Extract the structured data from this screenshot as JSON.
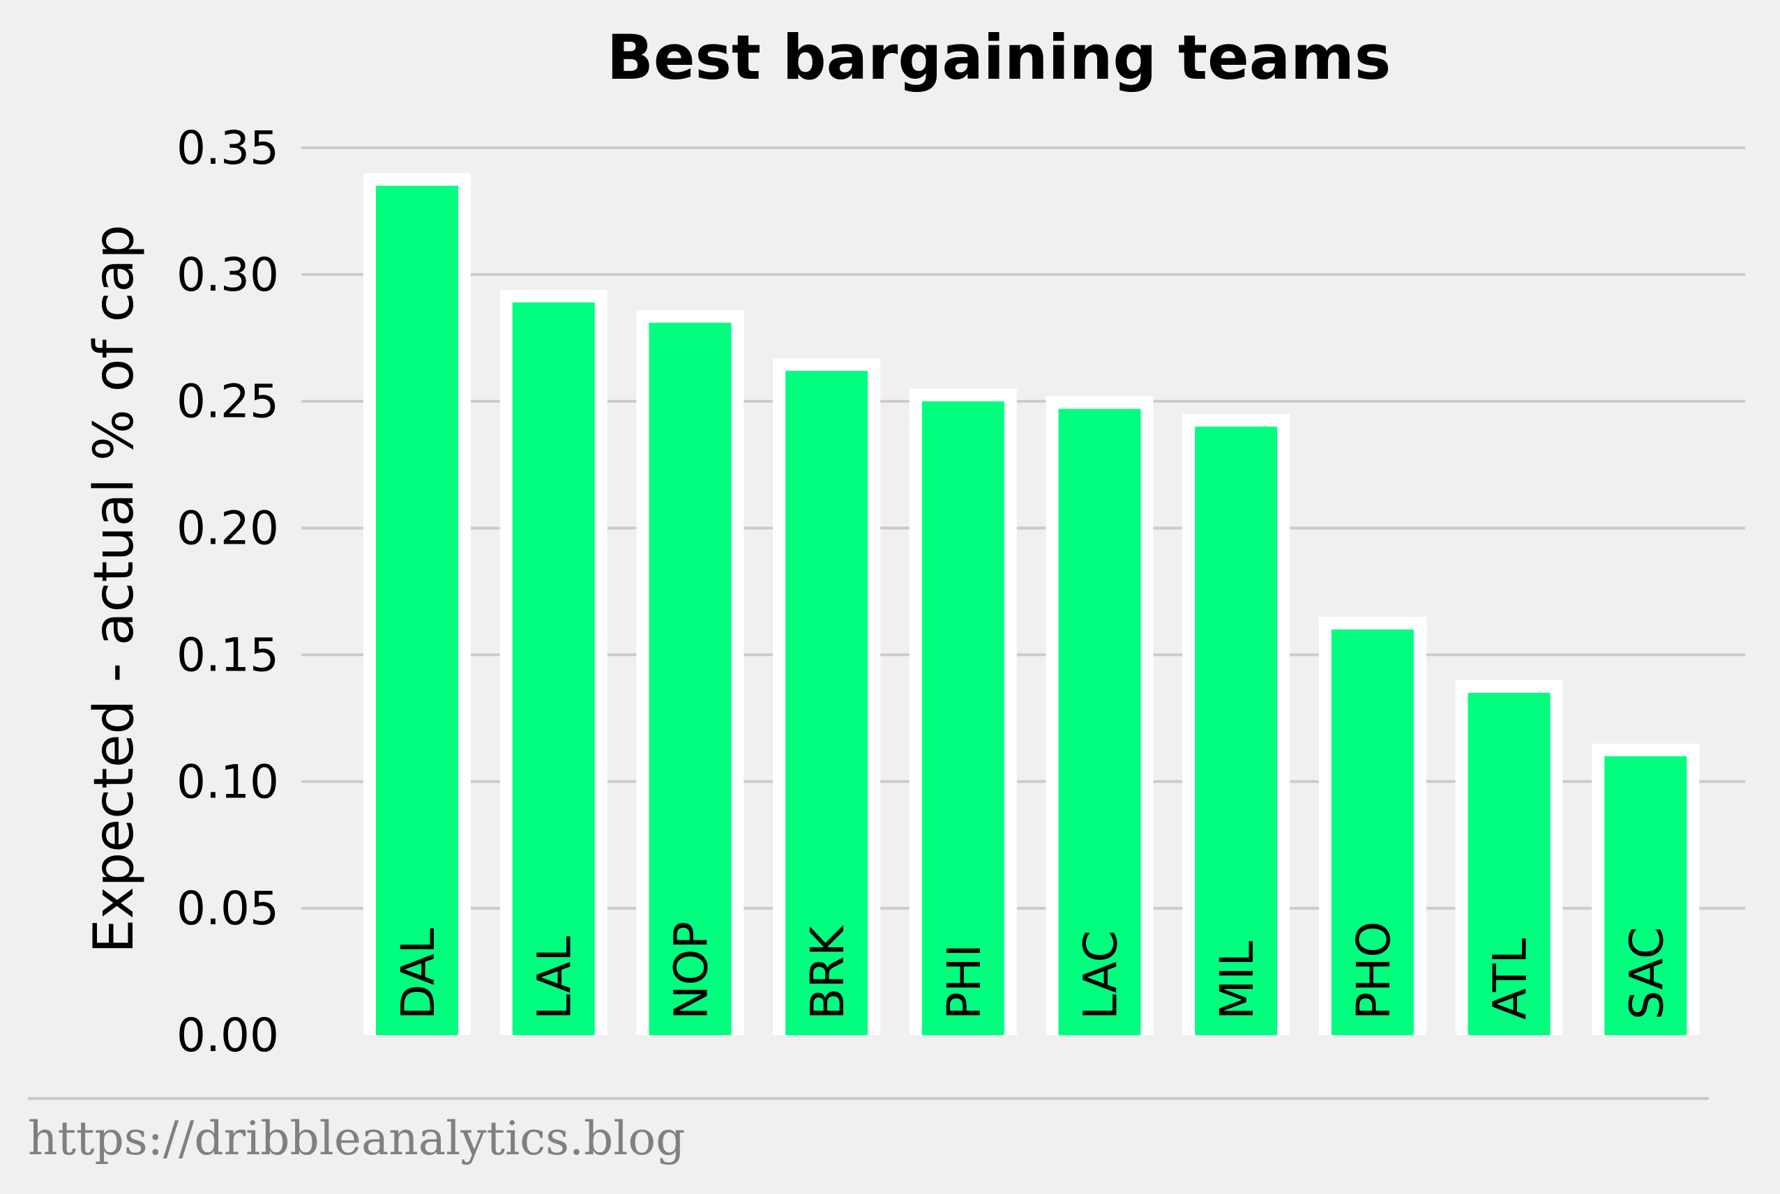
{
  "chart_data": {
    "type": "bar",
    "title": "Best bargaining teams",
    "ylabel": "Expected - actual % of cap",
    "xlabel": "",
    "categories": [
      "DAL",
      "LAL",
      "NOP",
      "BRK",
      "PHI",
      "LAC",
      "MIL",
      "PHO",
      "ATL",
      "SAC"
    ],
    "values": [
      0.335,
      0.289,
      0.281,
      0.262,
      0.25,
      0.247,
      0.24,
      0.16,
      0.135,
      0.11
    ],
    "ylim": [
      0,
      0.35
    ],
    "yticks": [
      "0.00",
      "0.05",
      "0.10",
      "0.15",
      "0.20",
      "0.25",
      "0.30",
      "0.35"
    ],
    "grid": "horizontal",
    "bar_color": "#00ff7f",
    "bar_edge_color": "#ffffff",
    "background_color": "#f0f0f0",
    "category_label_placement": "inside-bar-bottom-rotated"
  },
  "footer": {
    "source": "https://dribbleanalytics.blog"
  }
}
